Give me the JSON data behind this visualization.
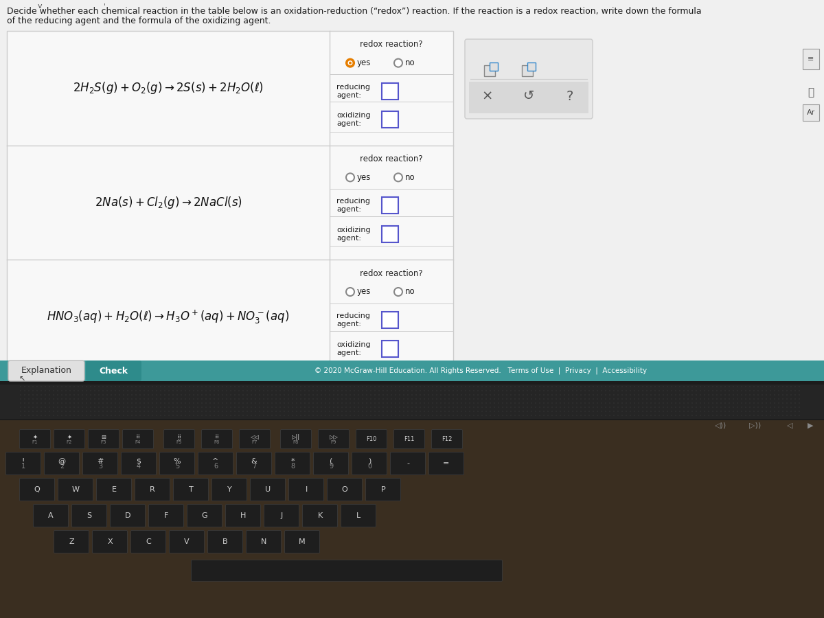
{
  "bg_color": "#1a1a1a",
  "screen_bg": "#f0f0f0",
  "header_line1": "Decide whether each chemical reaction in the table below is an oxidation-reduction (“redox”) reaction. If the reaction is a redox reaction, write down the formula",
  "header_line2": "of the reducing agent and the formula of the oxidizing agent.",
  "footer_text": "© 2020 McGraw-Hill Education. All Rights Reserved.   Terms of Use  |  Privacy  |  Accessibility",
  "button_explanation": "Explanation",
  "button_check": "Check",
  "teal_bar_color": "#3d9999",
  "check_button_color": "#2e8b8b",
  "table_bg": "#f5f5f5",
  "right_panel_bg": "#f8f8f8",
  "border_color": "#cccccc",
  "input_box_color": "#5555cc",
  "yes_circle_fill": "#e67e00",
  "yes_circle_border": "#e67e00",
  "radio_empty_border": "#888888",
  "icon_box_bg": "#e8e8e8",
  "icon_box_border": "#cccccc"
}
